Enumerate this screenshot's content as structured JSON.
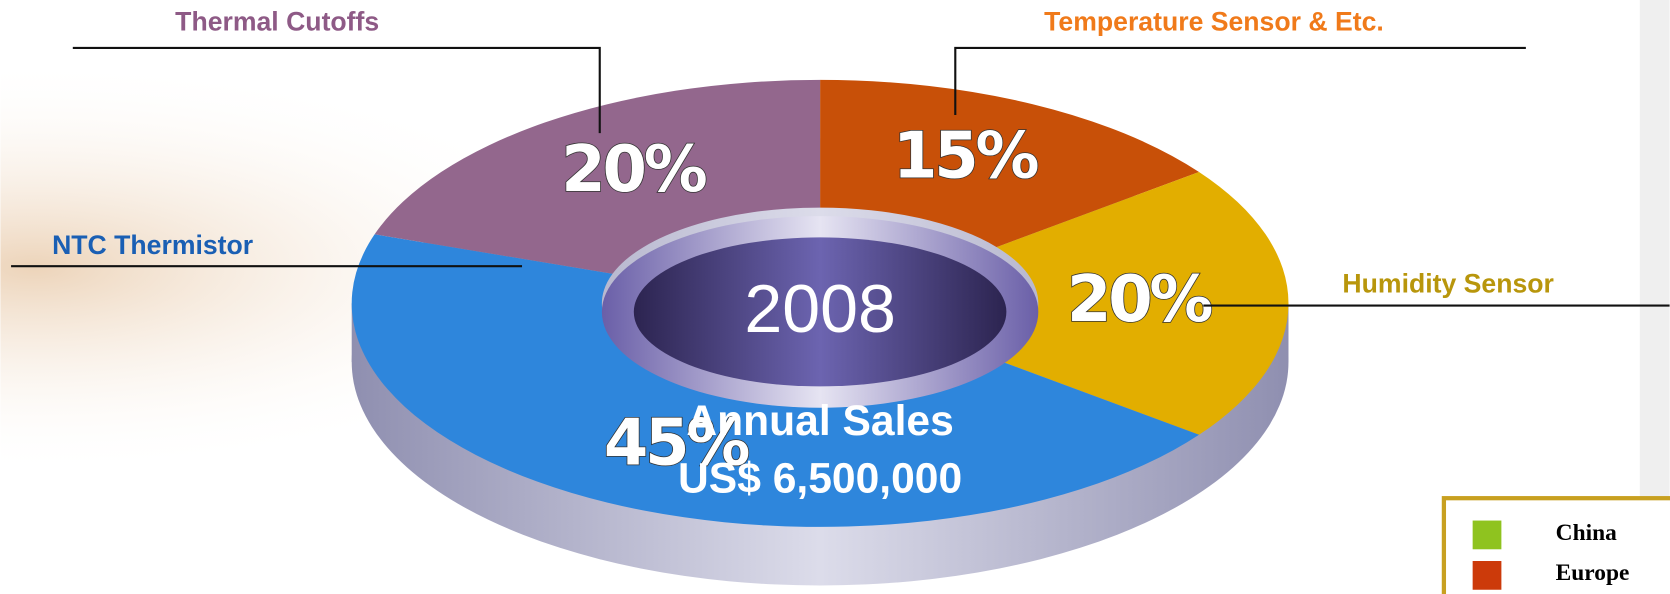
{
  "chart_data": {
    "type": "donut",
    "center_label": "2008",
    "title": "Annual Sales",
    "subtitle": "US$ 6,500,000",
    "categories": [
      "Temperature Sensor & Etc.",
      "Humidity Sensor",
      "NTC Thermistor",
      "Thermal Cutoffs"
    ],
    "values": [
      15,
      20,
      45,
      20
    ],
    "value_labels": [
      "15%",
      "20%",
      "45%",
      "20%"
    ],
    "colors": [
      "#c85008",
      "#e2ae00",
      "#2e86dc",
      "#93678d"
    ],
    "legend": [
      {
        "name": "China",
        "color": "#8fc31f"
      },
      {
        "name": "Europe",
        "color": "#cc3a0a"
      }
    ]
  }
}
